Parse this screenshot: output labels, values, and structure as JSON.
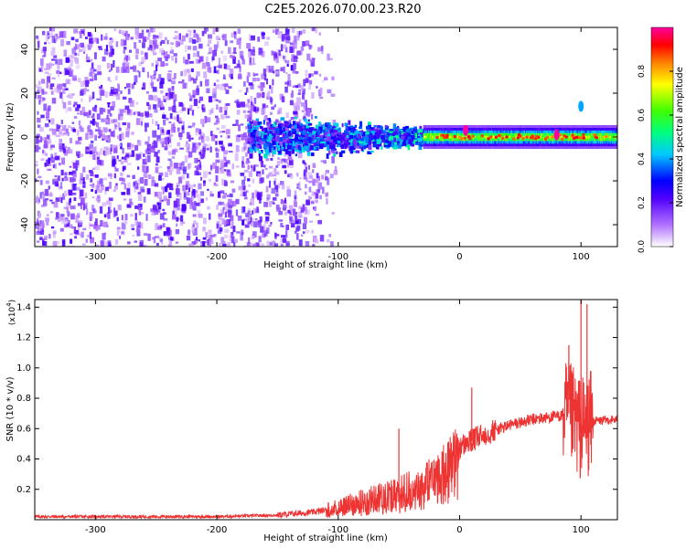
{
  "title": "C2E5.2026.070.00.23.R20",
  "chart_data": [
    {
      "type": "heatmap",
      "xlabel": "Height of straight line (km)",
      "ylabel": "Frequency (Hz)",
      "xlim": [
        -350,
        130
      ],
      "ylim": [
        -50,
        50
      ],
      "xticks": [
        -300,
        -200,
        -100,
        0,
        100
      ],
      "yticks": [
        -40,
        -20,
        0,
        20,
        40
      ],
      "colorbar": {
        "label": "Normalized spectral amplitude",
        "range": [
          0,
          1
        ],
        "ticks": [
          "0.0",
          "0.2",
          "0.4",
          "0.6",
          "0.8"
        ],
        "colors": [
          "#ffffff",
          "#8000ff",
          "#0000ff",
          "#00ffff",
          "#00ff00",
          "#ffff00",
          "#ff8000",
          "#ff0000",
          "#ff00ff"
        ]
      },
      "regions": [
        {
          "x": [
            -350,
            -110
          ],
          "y": [
            -50,
            50
          ],
          "amplitude": 0.1
        },
        {
          "x": [
            -175,
            -30
          ],
          "y": [
            -10,
            10
          ],
          "amplitude": 0.3
        },
        {
          "x": [
            -30,
            130
          ],
          "y": [
            -3,
            3
          ],
          "amplitude": 0.6
        }
      ],
      "peaks": [
        {
          "x": 100,
          "y": 14,
          "amplitude": 0.2
        },
        {
          "x": 5,
          "y": 3,
          "amplitude": 0.9
        },
        {
          "x": 80,
          "y": 1,
          "amplitude": 0.9
        }
      ]
    },
    {
      "type": "line",
      "xlabel": "Height of straight line (km)",
      "ylabel": "SNR (10 * v/v)",
      "yscale_label": "(x10",
      "yscale_exp": "4",
      "yscale_close": ")",
      "xlim": [
        -350,
        130
      ],
      "ylim": [
        0,
        1.45
      ],
      "xticks": [
        -300,
        -200,
        -100,
        0,
        100
      ],
      "yticks": [
        "0.2",
        "0.4",
        "0.6",
        "0.8",
        "1.0",
        "1.2",
        "1.4"
      ],
      "color": "#ee3333",
      "series": [
        {
          "x": [
            -350,
            -300,
            -250,
            -200,
            -150,
            -120,
            -100,
            -80,
            -60,
            -40,
            -20,
            -10,
            0,
            10,
            20,
            40,
            60,
            80,
            90,
            100,
            110,
            130
          ],
          "y": [
            0.02,
            0.02,
            0.02,
            0.02,
            0.03,
            0.05,
            0.08,
            0.12,
            0.16,
            0.2,
            0.28,
            0.38,
            0.48,
            0.52,
            0.56,
            0.62,
            0.66,
            0.68,
            0.7,
            0.6,
            0.65,
            0.66
          ]
        }
      ],
      "spikes": [
        {
          "x": 10,
          "y": 0.87
        },
        {
          "x": -50,
          "y": 0.6
        },
        {
          "x": 90,
          "y": 1.15
        },
        {
          "x": 100,
          "y": 1.45
        },
        {
          "x": 105,
          "y": 1.42
        }
      ]
    }
  ]
}
